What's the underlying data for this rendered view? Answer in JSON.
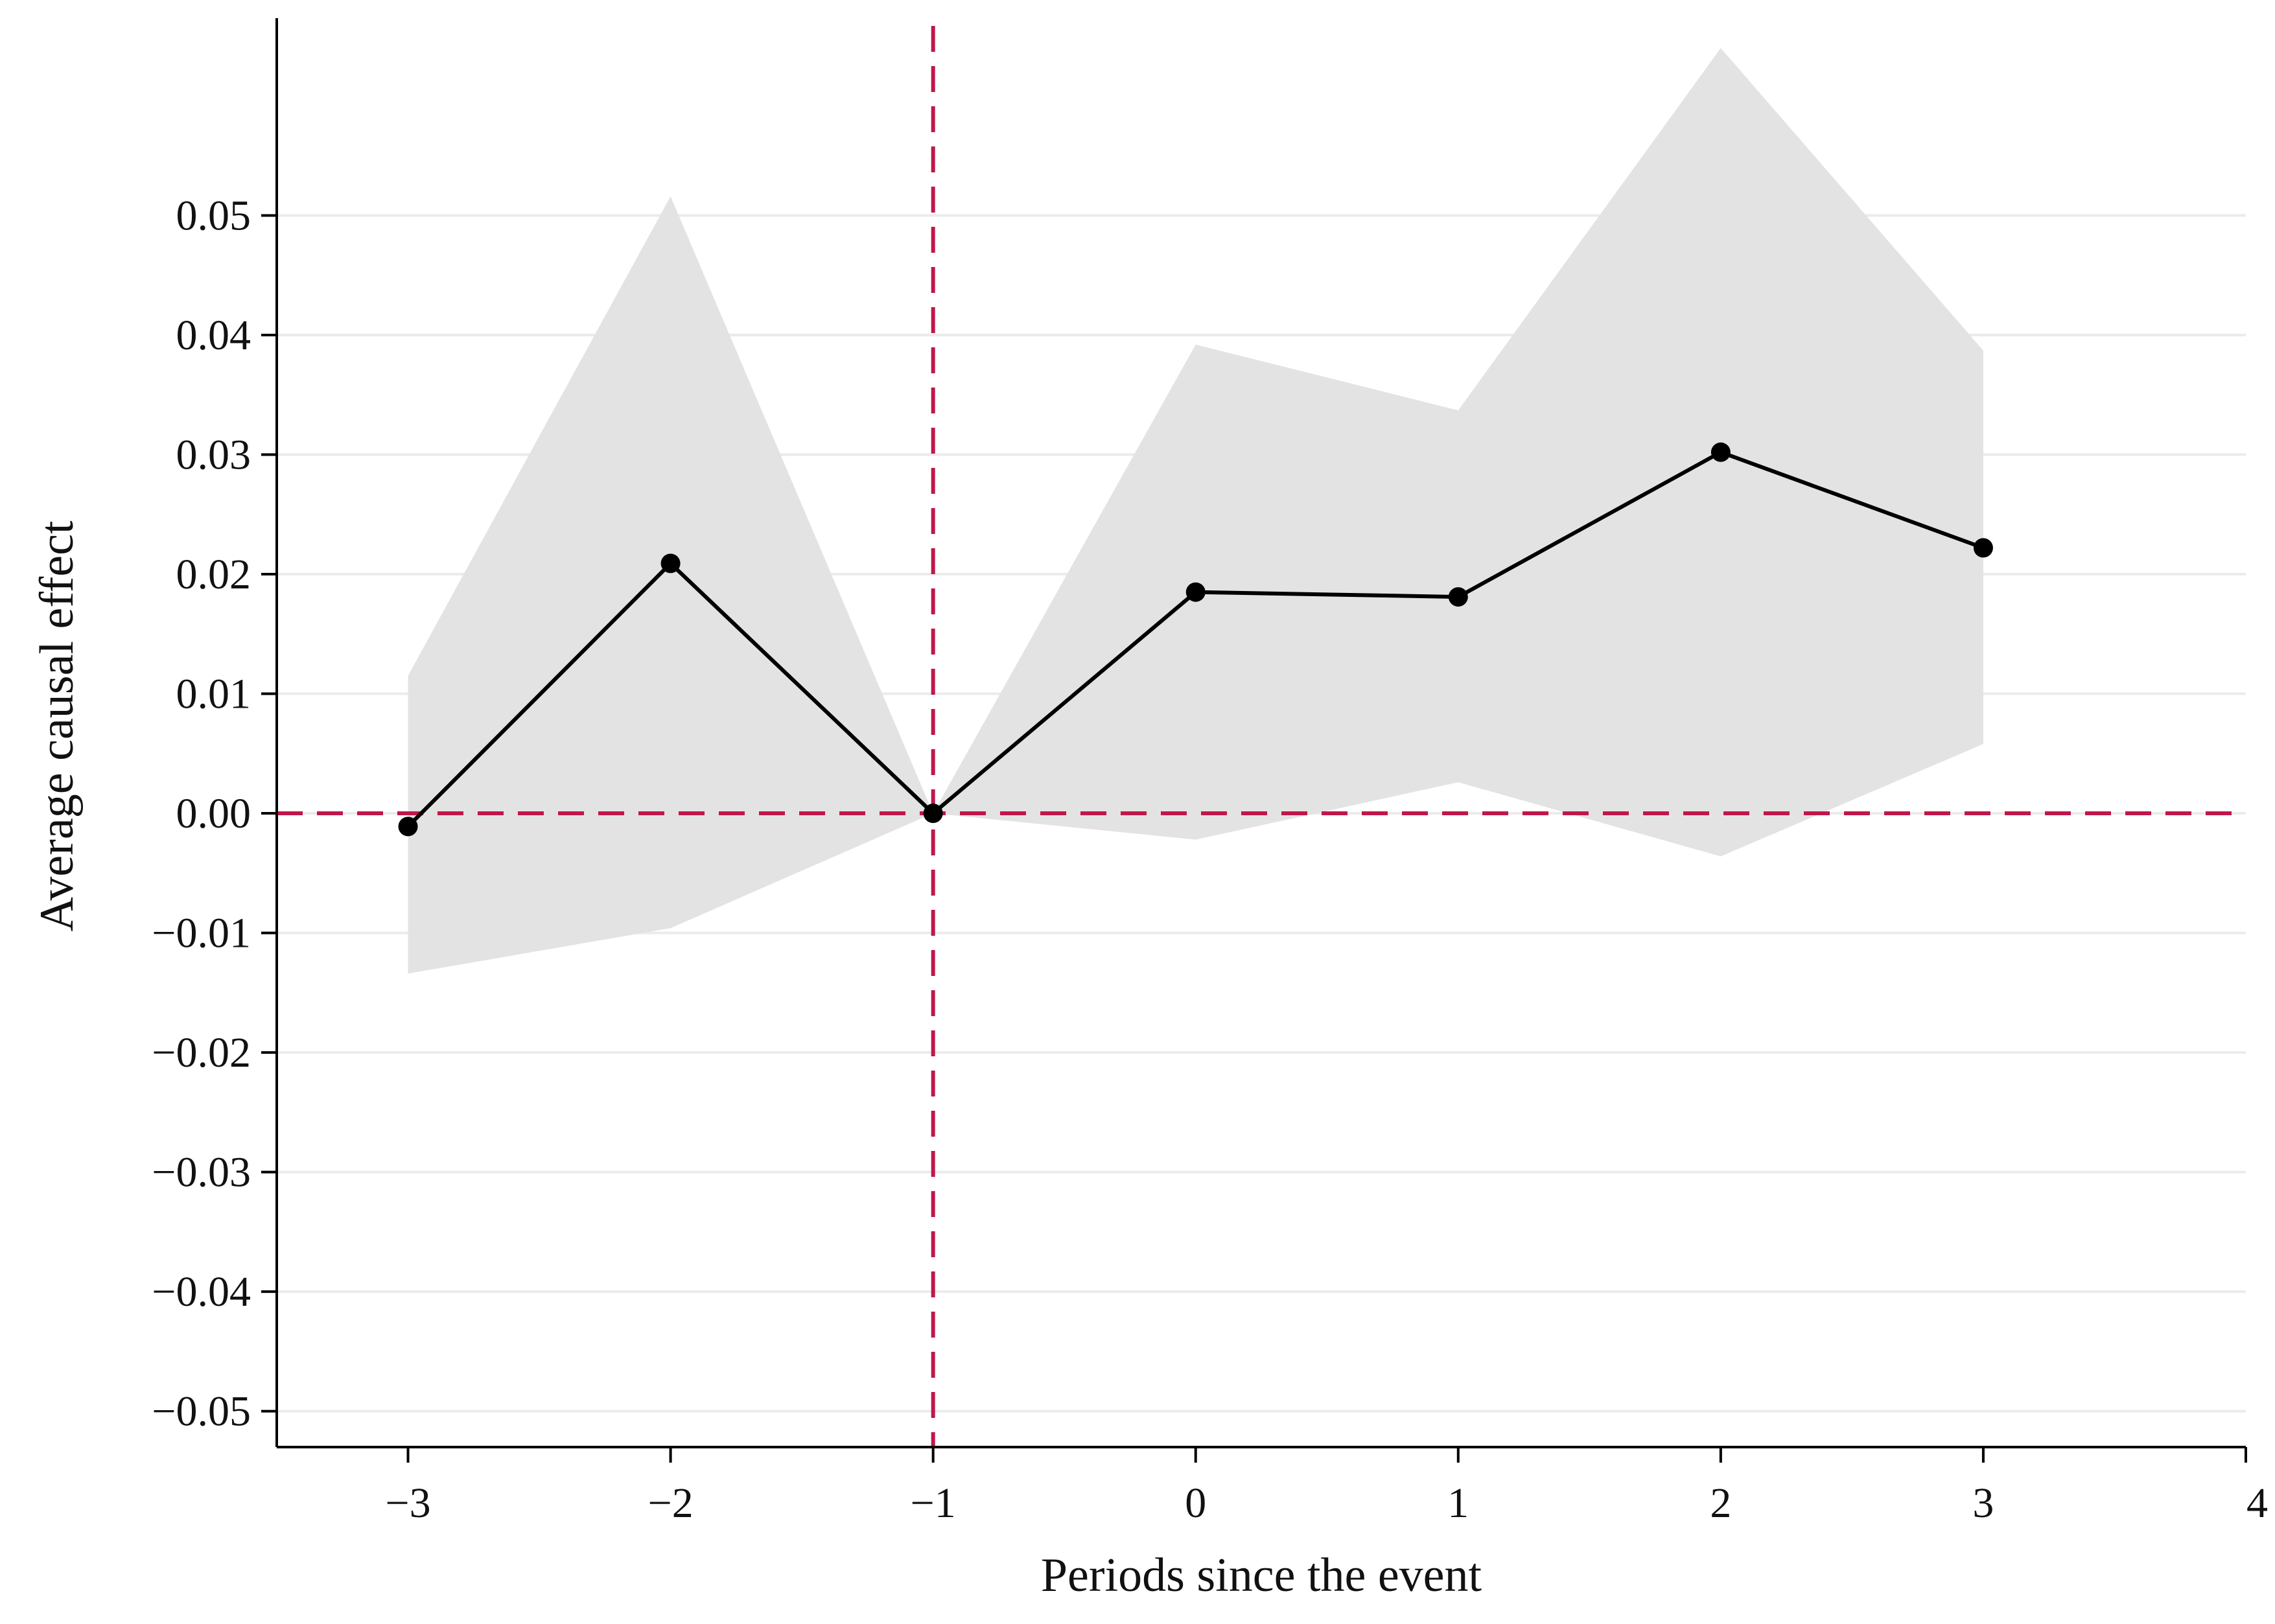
{
  "chart_data": {
    "type": "line",
    "title": "",
    "xlabel": "Periods since the event",
    "ylabel": "Average causal effect",
    "xlim": [
      -3.5,
      4
    ],
    "ylim": [
      -0.053,
      0.0665
    ],
    "x_ticks": [
      -3,
      -2,
      -1,
      0,
      1,
      2,
      3,
      4
    ],
    "x_tick_labels": [
      "−3",
      "−2",
      "−1",
      "0",
      "1",
      "2",
      "3",
      "4"
    ],
    "y_ticks": [
      0.05,
      0.04,
      0.03,
      0.02,
      0.01,
      0.0,
      -0.01,
      -0.02,
      -0.03,
      -0.04,
      -0.05
    ],
    "y_tick_labels": [
      "0.05",
      "0.04",
      "0.03",
      "0.02",
      "0.01",
      "0.00",
      "−0.01",
      "−0.02",
      "−0.03",
      "−0.04",
      "−0.05"
    ],
    "grid": "horizontal",
    "series": [
      {
        "name": "Average causal effect",
        "x": [
          -3,
          -2,
          -1,
          0,
          1,
          2,
          3
        ],
        "values": [
          -0.0011,
          0.0209,
          0.0,
          0.0185,
          0.0181,
          0.0302,
          0.0222
        ]
      }
    ],
    "confidence_band": {
      "x": [
        -3,
        -2,
        -1,
        0,
        1,
        2,
        3
      ],
      "lower": [
        -0.0134,
        -0.0096,
        0.0,
        -0.0022,
        0.0026,
        -0.0036,
        0.0058
      ],
      "upper": [
        0.0115,
        0.0516,
        0.0,
        0.0392,
        0.0337,
        0.064,
        0.0387
      ]
    },
    "reference_lines": [
      {
        "orientation": "horizontal",
        "value": 0.0,
        "style": "dashed"
      },
      {
        "orientation": "vertical",
        "value": -1,
        "style": "dashed"
      }
    ],
    "colors": {
      "line": "#000000",
      "band": "#e3e3e3",
      "reference": "#c0174a",
      "grid": "#ebebeb",
      "axis": "#000000"
    }
  }
}
